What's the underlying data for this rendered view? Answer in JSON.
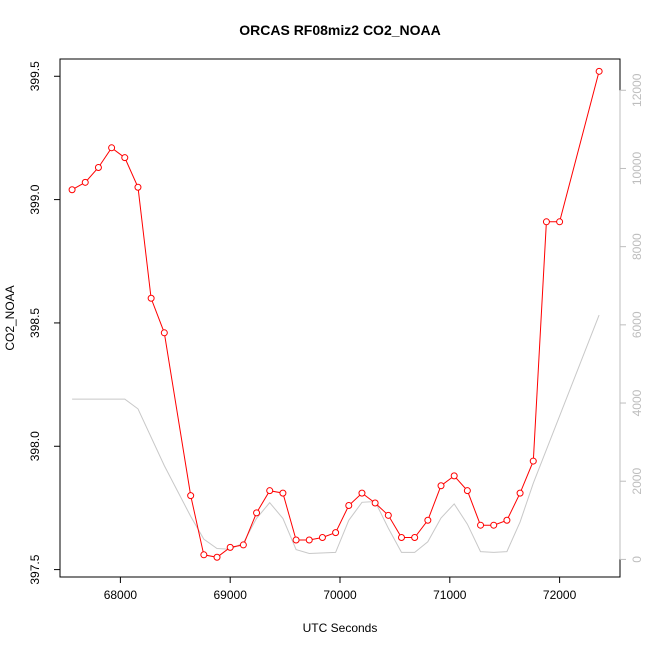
{
  "chart_data": {
    "type": "line",
    "title": "ORCAS RF08miz2 CO2_NOAA",
    "xlabel": "UTC Seconds",
    "ylabel": "CO2_NOAA",
    "xlim": [
      67450,
      72550
    ],
    "ylim": [
      397.47,
      399.57
    ],
    "ylim_right": [
      -450,
      12800
    ],
    "x_ticks": [
      68000,
      69000,
      70000,
      71000,
      72000
    ],
    "x_tick_labels": [
      "68000",
      "69000",
      "70000",
      "71000",
      "72000"
    ],
    "y_ticks": [
      397.5,
      398.0,
      398.5,
      399.0,
      399.5
    ],
    "y_tick_labels": [
      "397.5",
      "398.0",
      "398.5",
      "399.0",
      "399.5"
    ],
    "y_right_ticks": [
      0,
      2000,
      4000,
      6000,
      8000,
      10000,
      12000
    ],
    "y_right_tick_labels": [
      "0",
      "2000",
      "4000",
      "6000",
      "8000",
      "10000",
      "12000"
    ],
    "grid": false,
    "series": [
      {
        "axis": "left",
        "color": "#ff0000",
        "marker": "open-circle",
        "x": [
          67560,
          67680,
          67800,
          67920,
          68040,
          68160,
          68280,
          68400,
          68640,
          68760,
          68880,
          69000,
          69120,
          69240,
          69360,
          69480,
          69600,
          69720,
          69840,
          69960,
          70080,
          70200,
          70320,
          70440,
          70560,
          70680,
          70800,
          70920,
          71040,
          71160,
          71280,
          71400,
          71520,
          71640,
          71760,
          71880,
          72000,
          72360
        ],
        "values": [
          399.04,
          399.07,
          399.13,
          399.21,
          399.17,
          399.05,
          398.6,
          398.46,
          397.8,
          397.56,
          397.55,
          397.59,
          397.6,
          397.73,
          397.82,
          397.81,
          397.62,
          397.62,
          397.63,
          397.65,
          397.76,
          397.81,
          397.77,
          397.72,
          397.63,
          397.63,
          397.7,
          397.84,
          397.88,
          397.82,
          397.68,
          397.68,
          397.7,
          397.81,
          397.94,
          398.91,
          398.91,
          399.52
        ]
      },
      {
        "axis": "right",
        "color": "#c8c8c8",
        "marker": "none",
        "x": [
          67560,
          68040,
          68160,
          68400,
          68640,
          68760,
          68880,
          69000,
          69120,
          69240,
          69360,
          69480,
          69600,
          69720,
          69960,
          70080,
          70200,
          70320,
          70440,
          70560,
          70680,
          70800,
          70920,
          71040,
          71160,
          71280,
          71400,
          71520,
          71640,
          71760,
          72360
        ],
        "values": [
          4100,
          4100,
          3850,
          2400,
          1100,
          520,
          280,
          260,
          420,
          1050,
          1450,
          1050,
          250,
          150,
          180,
          1000,
          1460,
          1480,
          800,
          180,
          180,
          450,
          1060,
          1420,
          900,
          200,
          180,
          200,
          960,
          1950,
          6250
        ]
      }
    ]
  }
}
